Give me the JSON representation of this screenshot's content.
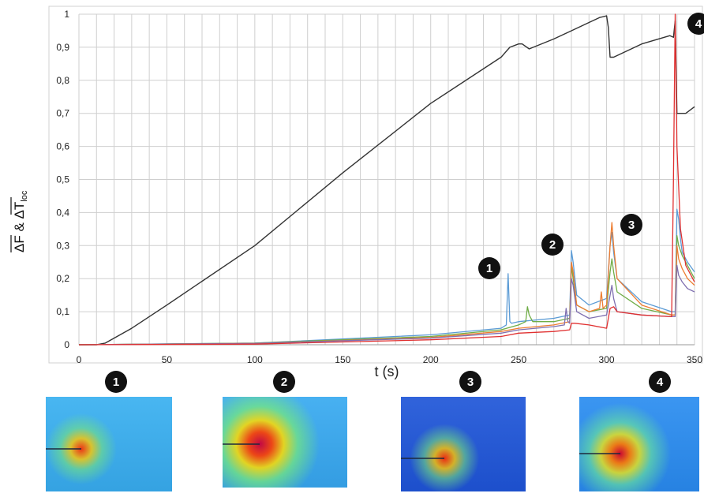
{
  "chart_data": {
    "type": "line",
    "xlabel": "t (s)",
    "ylabel_parts": {
      "a": "ΔF",
      "amp": " & ",
      "b": "ΔT",
      "b_sub": "loc"
    },
    "xlim": [
      0,
      350
    ],
    "ylim": [
      0,
      1
    ],
    "x_ticks": [
      "0",
      "50",
      "100",
      "150",
      "200",
      "250",
      "300",
      "350"
    ],
    "y_ticks": [
      "0",
      "0,1",
      "0,2",
      "0,3",
      "0,4",
      "0,5",
      "0,6",
      "0,7",
      "0,8",
      "0,9",
      "1"
    ],
    "grid": true,
    "series": [
      {
        "color": "#333333",
        "x": [
          0,
          10,
          15,
          20,
          30,
          50,
          100,
          150,
          200,
          240,
          245,
          250,
          252,
          256,
          270,
          280,
          290,
          296,
          300,
          301,
          302,
          304,
          320,
          336,
          338,
          339,
          340,
          345,
          350
        ],
        "y": [
          0,
          0,
          0.005,
          0.02,
          0.05,
          0.12,
          0.3,
          0.52,
          0.73,
          0.87,
          0.9,
          0.91,
          0.91,
          0.895,
          0.925,
          0.95,
          0.975,
          0.99,
          0.995,
          0.96,
          0.87,
          0.87,
          0.91,
          0.935,
          0.93,
          0.98,
          0.7,
          0.7,
          0.72
        ]
      },
      {
        "color": "#5b9bd5",
        "x": [
          0,
          100,
          200,
          240,
          243,
          244,
          245,
          246,
          250,
          270,
          279,
          280,
          281,
          283,
          290,
          300,
          302,
          303,
          304,
          306,
          320,
          337,
          339,
          340,
          341,
          342,
          343,
          346,
          350
        ],
        "y": [
          0,
          0.005,
          0.03,
          0.05,
          0.06,
          0.215,
          0.07,
          0.065,
          0.07,
          0.08,
          0.09,
          0.285,
          0.25,
          0.15,
          0.12,
          0.14,
          0.3,
          0.34,
          0.28,
          0.2,
          0.13,
          0.1,
          0.1,
          0.41,
          0.38,
          0.32,
          0.28,
          0.25,
          0.22
        ]
      },
      {
        "color": "#70ad47",
        "x": [
          0,
          100,
          200,
          240,
          250,
          254,
          255,
          256,
          258,
          270,
          279,
          280,
          281,
          283,
          290,
          300,
          302,
          303,
          304,
          306,
          320,
          337,
          339,
          340,
          341,
          343,
          346,
          350
        ],
        "y": [
          0,
          0.005,
          0.025,
          0.045,
          0.06,
          0.07,
          0.115,
          0.09,
          0.07,
          0.07,
          0.08,
          0.24,
          0.2,
          0.12,
          0.1,
          0.11,
          0.22,
          0.26,
          0.22,
          0.16,
          0.11,
          0.09,
          0.09,
          0.33,
          0.3,
          0.27,
          0.24,
          0.2
        ]
      },
      {
        "color": "#ed7d31",
        "x": [
          0,
          100,
          200,
          240,
          250,
          270,
          279,
          280,
          281,
          283,
          290,
          296,
          297,
          298,
          300,
          302,
          303,
          304,
          306,
          320,
          337,
          339,
          340,
          341,
          343,
          346,
          350
        ],
        "y": [
          0,
          0.004,
          0.022,
          0.04,
          0.05,
          0.06,
          0.07,
          0.25,
          0.22,
          0.12,
          0.1,
          0.11,
          0.16,
          0.11,
          0.12,
          0.3,
          0.37,
          0.3,
          0.2,
          0.12,
          0.09,
          0.09,
          0.3,
          0.26,
          0.23,
          0.2,
          0.18
        ]
      },
      {
        "color": "#7f6fb0",
        "x": [
          0,
          100,
          200,
          240,
          250,
          270,
          276,
          277,
          278,
          279,
          280,
          281,
          283,
          290,
          300,
          302,
          303,
          304,
          306,
          320,
          337,
          339,
          340,
          341,
          343,
          346,
          350
        ],
        "y": [
          0,
          0.004,
          0.02,
          0.035,
          0.045,
          0.055,
          0.06,
          0.11,
          0.07,
          0.065,
          0.2,
          0.18,
          0.1,
          0.08,
          0.09,
          0.15,
          0.18,
          0.14,
          0.1,
          0.09,
          0.085,
          0.085,
          0.24,
          0.21,
          0.19,
          0.17,
          0.16
        ]
      },
      {
        "color": "#e03030",
        "x": [
          0,
          100,
          200,
          240,
          250,
          270,
          279,
          280,
          282,
          290,
          300,
          302,
          304,
          306,
          320,
          337,
          338,
          339,
          340,
          342,
          345,
          350
        ],
        "y": [
          0,
          0.002,
          0.015,
          0.025,
          0.035,
          0.04,
          0.045,
          0.065,
          0.065,
          0.06,
          0.05,
          0.11,
          0.115,
          0.1,
          0.09,
          0.085,
          0.5,
          1.0,
          0.6,
          0.35,
          0.24,
          0.19
        ]
      }
    ]
  },
  "markers": [
    {
      "label": "1"
    },
    {
      "label": "2"
    },
    {
      "label": "3"
    },
    {
      "label": "4"
    }
  ],
  "thumbnails": [
    {
      "label": "1",
      "bg": "#39b0f0",
      "hot": "small",
      "spot_x": 0.28,
      "spot_y": 0.55
    },
    {
      "label": "2",
      "bg": "#38aaf0",
      "hot": "large",
      "spot_x": 0.3,
      "spot_y": 0.52
    },
    {
      "label": "3",
      "bg": "#1f56d8",
      "hot": "small",
      "spot_x": 0.35,
      "spot_y": 0.65
    },
    {
      "label": "4",
      "bg": "#2a8df0",
      "hot": "medium",
      "spot_x": 0.34,
      "spot_y": 0.6
    }
  ]
}
